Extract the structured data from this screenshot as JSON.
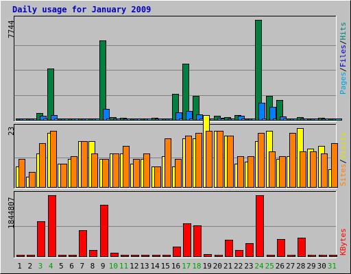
{
  "title": "Daily usage for January 2009",
  "colors": {
    "hits": "#008040",
    "files": "#0080ff",
    "pages": "#00c0ff",
    "sites": "#ff8000",
    "visits": "#ffff00",
    "kbytes": "#ff0000",
    "weekend": "#00a000",
    "panel": "#c0c0c0",
    "grid": "#808080"
  },
  "labels": {
    "hits": "Hits",
    "files": "Files",
    "pages": "Pages",
    "sites": "Sites",
    "visits": "Visits",
    "kbytes": "KBytes",
    "slash": "/"
  },
  "chart_data": [
    {
      "type": "bar",
      "panel": "hits-files-pages",
      "x": [
        "1",
        "2",
        "3",
        "4",
        "5",
        "6",
        "7",
        "8",
        "9",
        "10",
        "11",
        "12",
        "13",
        "14",
        "15",
        "16",
        "17",
        "18",
        "19",
        "20",
        "21",
        "22",
        "23",
        "24",
        "25",
        "26",
        "27",
        "28",
        "29",
        "30",
        "31"
      ],
      "weekend_days": [
        "3",
        "4",
        "10",
        "11",
        "17",
        "18",
        "24",
        "25",
        "31"
      ],
      "ymax": 7744,
      "series": [
        {
          "name": "Hits",
          "values": [
            100,
            40,
            540,
            3960,
            60,
            60,
            120,
            100,
            6140,
            200,
            140,
            120,
            100,
            140,
            120,
            2040,
            4330,
            1880,
            180,
            300,
            200,
            350,
            90,
            7744,
            1840,
            1540,
            90,
            220,
            130,
            150,
            100
          ]
        },
        {
          "name": "Files",
          "values": [
            50,
            20,
            300,
            360,
            30,
            30,
            60,
            50,
            860,
            100,
            70,
            60,
            50,
            70,
            60,
            560,
            700,
            420,
            90,
            150,
            100,
            300,
            45,
            1320,
            1000,
            280,
            45,
            110,
            65,
            75,
            50
          ]
        },
        {
          "name": "Pages",
          "values": [
            20,
            10,
            30,
            30,
            10,
            10,
            20,
            20,
            40,
            30,
            20,
            20,
            20,
            20,
            20,
            40,
            40,
            30,
            20,
            30,
            20,
            30,
            10,
            60,
            40,
            30,
            10,
            20,
            20,
            20,
            10
          ]
        }
      ]
    },
    {
      "type": "bar",
      "panel": "sites-visits",
      "x": [
        "1",
        "2",
        "3",
        "4",
        "5",
        "6",
        "7",
        "8",
        "9",
        "10",
        "11",
        "12",
        "13",
        "14",
        "15",
        "16",
        "17",
        "18",
        "19",
        "20",
        "21",
        "22",
        "23",
        "24",
        "25",
        "26",
        "27",
        "28",
        "29",
        "30",
        "31"
      ],
      "ymax": 23,
      "series": [
        {
          "name": "Sites",
          "values": [
            11,
            6,
            17,
            22,
            9,
            12,
            18,
            13,
            11,
            13,
            16,
            11,
            13,
            8,
            19,
            11,
            20,
            21,
            22,
            22,
            20,
            12,
            12,
            21,
            14,
            12,
            21,
            14,
            14,
            13,
            17
          ]
        },
        {
          "name": "Visits",
          "values": [
            8,
            4,
            13,
            21,
            9,
            11,
            18,
            18,
            11,
            13,
            13,
            9,
            11,
            8,
            12,
            8,
            19,
            19,
            28,
            22,
            20,
            9,
            10,
            18,
            22,
            11,
            12,
            23,
            15,
            16,
            7
          ]
        }
      ]
    },
    {
      "type": "bar",
      "panel": "kbytes",
      "x": [
        "1",
        "2",
        "3",
        "4",
        "5",
        "6",
        "7",
        "8",
        "9",
        "10",
        "11",
        "12",
        "13",
        "14",
        "15",
        "16",
        "17",
        "18",
        "19",
        "20",
        "21",
        "22",
        "23",
        "24",
        "25",
        "26",
        "27",
        "28",
        "29",
        "30",
        "31"
      ],
      "ymax": 1844807,
      "series": [
        {
          "name": "KBytes",
          "values": [
            0,
            0,
            1050000,
            1844807,
            0,
            0,
            780000,
            190000,
            1560000,
            110000,
            0,
            0,
            0,
            0,
            0,
            280000,
            1000000,
            940000,
            60000,
            0,
            500000,
            180000,
            400000,
            1844807,
            0,
            510000,
            0,
            570000,
            0,
            0,
            0
          ]
        }
      ]
    }
  ]
}
